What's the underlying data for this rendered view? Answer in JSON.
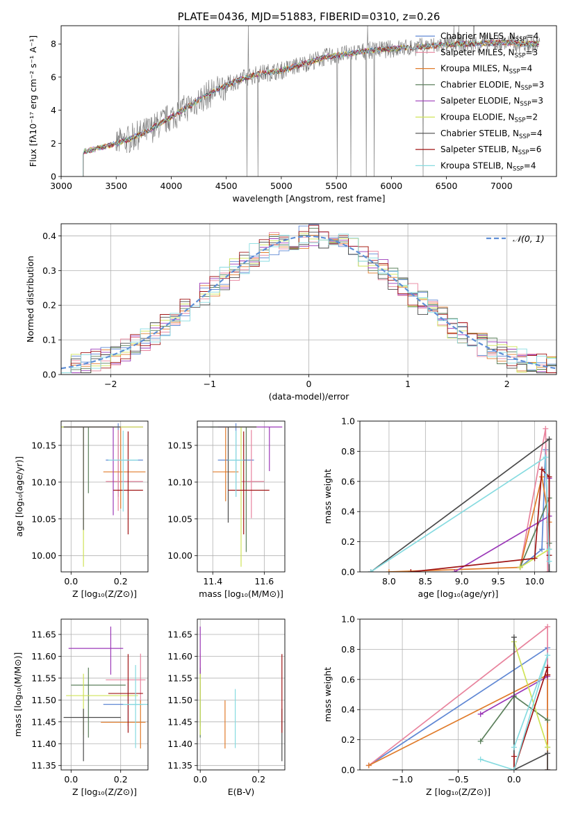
{
  "colors": {
    "chabrier_miles": "#5f87d4",
    "salpeter_miles": "#e8839d",
    "kroupa_miles": "#e07b2a",
    "chabrier_elodie": "#5a7f5a",
    "salpeter_elodie": "#9b38b8",
    "kroupa_elodie": "#cfe357",
    "chabrier_stelib": "#4a4a4a",
    "salpeter_stelib": "#a01515",
    "kroupa_stelib": "#86dbe0",
    "spectrum": "#808080",
    "gaussian": "#5f8fd6",
    "grid": "#b0b0b0"
  },
  "chart_data": [
    {
      "id": "spectrum",
      "type": "line",
      "title": "PLATE=0436, MJD=51883, FIBERID=0310, z=0.26",
      "xlabel": "wavelength [Angstrom, rest frame]",
      "ylabel": "Flux [fλ10⁻¹⁷ erg cm⁻² s⁻¹ A⁻¹]",
      "xlim": [
        3000,
        7500
      ],
      "ylim": [
        0,
        9.1
      ],
      "xticks": [
        "3000",
        "3500",
        "4000",
        "4500",
        "5000",
        "5500",
        "6000",
        "6500",
        "7000"
      ],
      "yticks": [
        "0",
        "2",
        "4",
        "6",
        "8"
      ],
      "grid": false,
      "legend_position": "top-right",
      "series": [
        {
          "name": "Chabrier MILES, N_SSP=4",
          "label_main": "Chabrier MILES, N",
          "label_sub": "SSP",
          "label_tail": "=4"
        },
        {
          "name": "Salpeter MILES, N_SSP=3",
          "label_main": "Salpeter MILES, N",
          "label_sub": "SSP",
          "label_tail": "=3"
        },
        {
          "name": "Kroupa MILES, N_SSP=4",
          "label_main": "Kroupa MILES, N",
          "label_sub": "SSP",
          "label_tail": "=4"
        },
        {
          "name": "Chabrier ELODIE, N_SSP=3",
          "label_main": "Chabrier ELODIE, N",
          "label_sub": "SSP",
          "label_tail": "=3"
        },
        {
          "name": "Salpeter ELODIE, N_SSP=3",
          "label_main": "Salpeter ELODIE, N",
          "label_sub": "SSP",
          "label_tail": "=3"
        },
        {
          "name": "Kroupa ELODIE, N_SSP=2",
          "label_main": "Kroupa ELODIE, N",
          "label_sub": "SSP",
          "label_tail": "=2"
        },
        {
          "name": "Chabrier STELIB, N_SSP=4",
          "label_main": "Chabrier STELIB, N",
          "label_sub": "SSP",
          "label_tail": "=4"
        },
        {
          "name": "Salpeter STELIB, N_SSP=6",
          "label_main": "Salpeter STELIB, N",
          "label_sub": "SSP",
          "label_tail": "=6"
        },
        {
          "name": "Kroupa STELIB, N_SSP=4",
          "label_main": "Kroupa STELIB, N",
          "label_sub": "SSP",
          "label_tail": "=4"
        }
      ],
      "continuum": {
        "x": [
          3200,
          3400,
          3600,
          3800,
          4000,
          4200,
          4400,
          4600,
          4800,
          5000,
          5200,
          5400,
          5600,
          5800,
          6000,
          6200,
          6400,
          6600,
          6800,
          7000,
          7200,
          7350
        ],
        "y": [
          1.5,
          1.8,
          2.2,
          2.8,
          3.6,
          4.4,
          5.2,
          5.8,
          6.2,
          6.4,
          6.8,
          7.2,
          7.4,
          7.6,
          7.7,
          7.8,
          7.9,
          8.0,
          8.0,
          8.1,
          8.0,
          8.0
        ]
      }
    },
    {
      "id": "residuals",
      "type": "line",
      "xlabel": "(data-model)/error",
      "ylabel": "Normed distribution",
      "xlim": [
        -2.5,
        2.5
      ],
      "ylim": [
        0,
        0.435
      ],
      "xticks": [
        "−2",
        "−1",
        "0",
        "1",
        "2"
      ],
      "yticks": [
        "0.0",
        "0.1",
        "0.2",
        "0.3",
        "0.4"
      ],
      "grid": true,
      "legend_position": "top-right",
      "legend": "𝒩(0, 1)",
      "gaussian": {
        "mean": 0,
        "sigma": 1
      }
    },
    {
      "id": "age-vs-z",
      "type": "scatter",
      "xlabel": "Z [log₁₀(Z/Z⊙)]",
      "ylabel": "age  [log₁₀(age/yr)]",
      "xlim": [
        -0.04,
        0.31
      ],
      "ylim": [
        9.978,
        10.183
      ],
      "xticks": [
        "0.0",
        "0.2"
      ],
      "yticks": [
        "10.00",
        "10.05",
        "10.10",
        "10.15"
      ],
      "grid": true,
      "points": [
        {
          "series": "Chabrier MILES",
          "x": 0.19,
          "y": 10.13,
          "xerr": [
            0.05,
            0.1
          ],
          "yerr": [
            0.05,
            0.05
          ]
        },
        {
          "series": "Salpeter MILES",
          "x": 0.19,
          "y": 10.101,
          "xerr": [
            0.05,
            0.1
          ],
          "yerr": [
            0.04,
            0.07
          ]
        },
        {
          "series": "Kroupa MILES",
          "x": 0.2,
          "y": 10.114,
          "xerr": [
            0.07,
            0.1
          ],
          "yerr": [
            0.05,
            0.06
          ]
        },
        {
          "series": "Chabrier ELODIE",
          "x": 0.07,
          "y": 10.175,
          "xerr": [
            0.12,
            0.1
          ],
          "yerr": [
            0.09,
            0.0
          ]
        },
        {
          "series": "Salpeter ELODIE",
          "x": 0.17,
          "y": 10.175,
          "xerr": [
            0.2,
            0.12
          ],
          "yerr": [
            0.12,
            0.0
          ]
        },
        {
          "series": "Kroupa ELODIE",
          "x": 0.05,
          "y": 10.175,
          "xerr": [
            0.1,
            0.24
          ],
          "yerr": [
            0.19,
            0.0
          ]
        },
        {
          "series": "Chabrier STELIB",
          "x": 0.05,
          "y": 10.175,
          "xerr": [
            0.08,
            0.15
          ],
          "yerr": [
            0.14,
            0.0
          ]
        },
        {
          "series": "Salpeter STELIB",
          "x": 0.23,
          "y": 10.089,
          "xerr": [
            0.06,
            0.06
          ],
          "yerr": [
            0.06,
            0.08
          ]
        },
        {
          "series": "Kroupa STELIB",
          "x": 0.21,
          "y": 10.13,
          "xerr": [
            0.06,
            0.06
          ],
          "yerr": [
            0.07,
            0.04
          ]
        }
      ]
    },
    {
      "id": "age-vs-mass",
      "type": "scatter",
      "xlabel": "mass [log₁₀(M/M⊙)]",
      "xlim": [
        11.34,
        11.68
      ],
      "ylim": [
        9.978,
        10.183
      ],
      "xticks": [
        "11.4",
        "11.6"
      ],
      "yticks": [
        "10.00",
        "10.05",
        "10.10",
        "10.15"
      ],
      "grid": true,
      "points": [
        {
          "series": "Chabrier MILES",
          "x": 11.49,
          "y": 10.13,
          "xerr": [
            0.07,
            0.07
          ],
          "yerr": [
            0.05,
            0.05
          ]
        },
        {
          "series": "Salpeter MILES",
          "x": 11.55,
          "y": 10.101,
          "xerr": [
            0.04,
            0.05
          ],
          "yerr": [
            0.05,
            0.07
          ]
        },
        {
          "series": "Kroupa MILES",
          "x": 11.45,
          "y": 10.114,
          "xerr": [
            0.05,
            0.05
          ],
          "yerr": [
            0.04,
            0.06
          ]
        },
        {
          "series": "Chabrier ELODIE",
          "x": 11.53,
          "y": 10.175,
          "xerr": [
            0.14,
            0.04
          ],
          "yerr": [
            0.17,
            0.0
          ]
        },
        {
          "series": "Salpeter ELODIE",
          "x": 11.62,
          "y": 10.175,
          "xerr": [
            0.2,
            0.05
          ],
          "yerr": [
            0.06,
            0.0
          ]
        },
        {
          "series": "Kroupa ELODIE",
          "x": 11.51,
          "y": 10.175,
          "xerr": [
            0.05,
            0.06
          ],
          "yerr": [
            0.19,
            0.0
          ]
        },
        {
          "series": "Chabrier STELIB",
          "x": 11.46,
          "y": 10.175,
          "xerr": [
            0.12,
            0.11
          ],
          "yerr": [
            0.13,
            0.0
          ]
        },
        {
          "series": "Salpeter STELIB",
          "x": 11.52,
          "y": 10.089,
          "xerr": [
            0.06,
            0.1
          ],
          "yerr": [
            0.06,
            0.08
          ]
        },
        {
          "series": "Kroupa STELIB",
          "x": 11.49,
          "y": 10.13,
          "xerr": [
            0.03,
            0.03
          ],
          "yerr": [
            0.05,
            0.04
          ]
        }
      ]
    },
    {
      "id": "mass-weight-vs-age",
      "type": "line",
      "xlabel": "age  [log₁₀(age/yr)]",
      "ylabel": "mass weight",
      "xlim": [
        7.6,
        10.3
      ],
      "ylim": [
        0,
        1.0
      ],
      "xticks": [
        "8.0",
        "8.5",
        "9.0",
        "9.5",
        "10.0"
      ],
      "yticks": [
        "0.0",
        "0.2",
        "0.4",
        "0.6",
        "0.8",
        "1.0"
      ],
      "grid": true,
      "series": [
        {
          "name": "Chabrier MILES",
          "x": [
            9.8,
            10.1,
            10.15,
            10.2
          ],
          "y": [
            0.03,
            0.15,
            0.81,
            0.0
          ]
        },
        {
          "name": "Salpeter MILES",
          "x": [
            9.8,
            10.15,
            10.18
          ],
          "y": [
            0.03,
            0.95,
            0.0
          ]
        },
        {
          "name": "Kroupa MILES",
          "x": [
            8.0,
            9.8,
            10.1,
            10.2
          ],
          "y": [
            0.0,
            0.03,
            0.63,
            0.33
          ]
        },
        {
          "name": "Chabrier ELODIE",
          "x": [
            9.8,
            10.2,
            10.2
          ],
          "y": [
            0.03,
            0.49,
            0.19
          ]
        },
        {
          "name": "Salpeter ELODIE",
          "x": [
            8.9,
            10.2,
            10.2
          ],
          "y": [
            0.0,
            0.37,
            0.62
          ]
        },
        {
          "name": "Kroupa ELODIE",
          "x": [
            9.8,
            10.2
          ],
          "y": [
            0.03,
            0.15
          ]
        },
        {
          "name": "Chabrier STELIB",
          "x": [
            7.75,
            10.2,
            10.2,
            10.2
          ],
          "y": [
            0.0,
            0.88,
            0.11,
            0.0
          ]
        },
        {
          "name": "Salpeter STELIB",
          "x": [
            8.3,
            10.0,
            10.1,
            10.2,
            10.2
          ],
          "y": [
            0.0,
            0.09,
            0.68,
            0.63,
            0.11
          ]
        },
        {
          "name": "Kroupa STELIB",
          "x": [
            7.75,
            10.15,
            10.2,
            10.2
          ],
          "y": [
            0.0,
            0.76,
            0.07,
            0.15
          ]
        }
      ]
    },
    {
      "id": "mass-vs-z",
      "type": "scatter",
      "xlabel": "Z [log₁₀(Z/Z⊙)]",
      "ylabel": "mass [log₁₀(M/M⊙)]",
      "xlim": [
        -0.04,
        0.31
      ],
      "ylim": [
        11.34,
        11.685
      ],
      "xticks": [
        "0.0",
        "0.2"
      ],
      "yticks": [
        "11.35",
        "11.40",
        "11.45",
        "11.50",
        "11.55",
        "11.60",
        "11.65"
      ],
      "grid": true,
      "points": [
        {
          "series": "Chabrier MILES",
          "x": 0.23,
          "y": 11.49,
          "xerr": [
            0.1,
            0.06
          ],
          "yerr": [
            0.05,
            0.05
          ]
        },
        {
          "series": "Salpeter MILES",
          "x": 0.28,
          "y": 11.546,
          "xerr": [
            0.14,
            0.02
          ],
          "yerr": [
            0.05,
            0.06
          ]
        },
        {
          "series": "Kroupa MILES",
          "x": 0.28,
          "y": 11.449,
          "xerr": [
            0.16,
            0.02
          ],
          "yerr": [
            0.06,
            0.05
          ]
        },
        {
          "series": "Chabrier ELODIE",
          "x": 0.07,
          "y": 11.534,
          "xerr": [
            0.07,
            0.15
          ],
          "yerr": [
            0.12,
            0.04
          ]
        },
        {
          "series": "Salpeter ELODIE",
          "x": 0.16,
          "y": 11.618,
          "xerr": [
            0.17,
            0.05
          ],
          "yerr": [
            0.06,
            0.05
          ]
        },
        {
          "series": "Kroupa ELODIE",
          "x": 0.05,
          "y": 11.51,
          "xerr": [
            0.07,
            0.22
          ],
          "yerr": [
            0.09,
            0.05
          ]
        },
        {
          "series": "Chabrier STELIB",
          "x": 0.05,
          "y": 11.46,
          "xerr": [
            0.08,
            0.15
          ],
          "yerr": [
            0.1,
            0.02
          ]
        },
        {
          "series": "Salpeter STELIB",
          "x": 0.23,
          "y": 11.515,
          "xerr": [
            0.08,
            0.06
          ],
          "yerr": [
            0.09,
            0.09
          ]
        },
        {
          "series": "Kroupa STELIB",
          "x": 0.26,
          "y": 11.49,
          "xerr": [
            0.05,
            0.05
          ],
          "yerr": [
            0.1,
            0.09
          ]
        }
      ]
    },
    {
      "id": "mass-vs-ebv",
      "type": "scatter",
      "xlabel": "E(B-V)",
      "xlim": [
        -0.01,
        0.29
      ],
      "ylim": [
        11.34,
        11.685
      ],
      "xticks": [
        "0.0",
        "0.2"
      ],
      "yticks": [
        "11.35",
        "11.40",
        "11.45",
        "11.50",
        "11.55",
        "11.60",
        "11.65"
      ],
      "grid": true,
      "points": [
        {
          "series": "Chabrier MILES",
          "x": 0.0,
          "y": 11.49,
          "yerr": [
            0.05,
            0.05
          ]
        },
        {
          "series": "Salpeter MILES",
          "x": 0.0,
          "y": 11.546,
          "yerr": [
            0.05,
            0.06
          ]
        },
        {
          "series": "Kroupa MILES",
          "x": 0.085,
          "y": 11.449,
          "yerr": [
            0.06,
            0.05
          ]
        },
        {
          "series": "Chabrier ELODIE",
          "x": 0.0,
          "y": 11.534,
          "yerr": [
            0.12,
            0.04
          ]
        },
        {
          "series": "Salpeter ELODIE",
          "x": 0.0,
          "y": 11.618,
          "yerr": [
            0.06,
            0.05
          ]
        },
        {
          "series": "Kroupa ELODIE",
          "x": 0.0,
          "y": 11.51,
          "yerr": [
            0.09,
            0.05
          ]
        },
        {
          "series": "Chabrier STELIB",
          "x": 0.28,
          "y": 11.46,
          "yerr": [
            0.1,
            0.02
          ]
        },
        {
          "series": "Salpeter STELIB",
          "x": 0.28,
          "y": 11.515,
          "yerr": [
            0.09,
            0.09
          ]
        },
        {
          "series": "Kroupa STELIB",
          "x": 0.12,
          "y": 11.49,
          "yerr": [
            0.1,
            0.035
          ]
        }
      ]
    },
    {
      "id": "mass-weight-vs-z",
      "type": "line",
      "xlabel": "Z [log₁₀(Z/Z⊙)]",
      "ylabel": "mass weight",
      "xlim": [
        -1.38,
        0.38
      ],
      "ylim": [
        0,
        1.0
      ],
      "xticks": [
        "−1.0",
        "−0.5",
        "0.0"
      ],
      "yticks": [
        "0.0",
        "0.2",
        "0.4",
        "0.6",
        "0.8",
        "1.0"
      ],
      "grid": true,
      "series": [
        {
          "name": "Chabrier MILES",
          "x": [
            -1.3,
            0.3,
            0.3,
            0.3
          ],
          "y": [
            0.03,
            0.81,
            0.15,
            0.0
          ]
        },
        {
          "name": "Salpeter MILES",
          "x": [
            -1.3,
            0.3,
            0.3
          ],
          "y": [
            0.03,
            0.95,
            0.0
          ]
        },
        {
          "name": "Kroupa MILES",
          "x": [
            -1.3,
            0.3,
            0.3,
            0.3
          ],
          "y": [
            0.03,
            0.63,
            0.33,
            0.0
          ]
        },
        {
          "name": "Chabrier ELODIE",
          "x": [
            -0.3,
            0.0,
            0.3
          ],
          "y": [
            0.19,
            0.49,
            0.33
          ]
        },
        {
          "name": "Salpeter ELODIE",
          "x": [
            -0.3,
            0.3
          ],
          "y": [
            0.37,
            0.62
          ]
        },
        {
          "name": "Kroupa ELODIE",
          "x": [
            0.0,
            0.3
          ],
          "y": [
            0.85,
            0.15
          ]
        },
        {
          "name": "Chabrier STELIB",
          "x": [
            0.0,
            0.0,
            0.3,
            0.3
          ],
          "y": [
            0.88,
            0.0,
            0.11,
            0.0
          ]
        },
        {
          "name": "Salpeter STELIB",
          "x": [
            0.0,
            0.0,
            0.3,
            0.3
          ],
          "y": [
            0.09,
            0.0,
            0.68,
            0.63
          ]
        },
        {
          "name": "Kroupa STELIB",
          "x": [
            -0.3,
            0.0,
            0.3,
            0.0
          ],
          "y": [
            0.07,
            0.0,
            0.76,
            0.15
          ]
        }
      ]
    }
  ]
}
